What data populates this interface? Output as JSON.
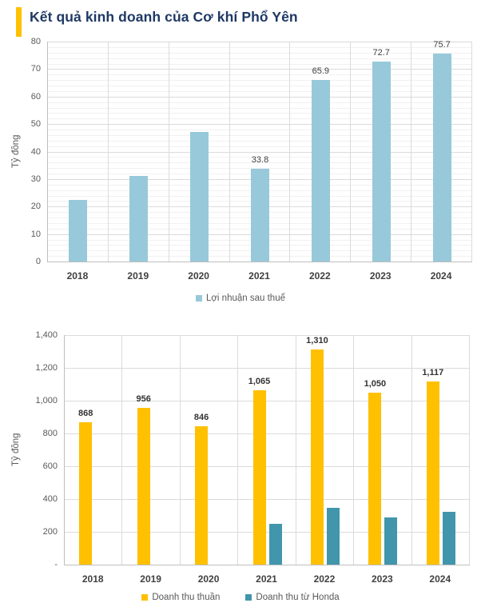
{
  "page": {
    "title": "Kết quả kinh doanh của Cơ khí Phổ Yên"
  },
  "colors": {
    "accent_bar": "#FFC000",
    "title_text": "#1F3864",
    "profit_bar": "#97C9DA",
    "net_revenue_bar": "#FFC000",
    "honda_revenue_bar": "#4296AC"
  },
  "chart_data": [
    {
      "type": "bar",
      "ylabel": "Tỷ đồng",
      "categories": [
        "2018",
        "2019",
        "2020",
        "2021",
        "2022",
        "2023",
        "2024"
      ],
      "series": [
        {
          "name": "Lợi nhuận sau thuế",
          "color": "#97C9DA",
          "values": [
            22.5,
            31.2,
            47.0,
            33.8,
            65.9,
            72.7,
            75.7
          ],
          "labels": [
            "",
            "",
            "",
            "33.8",
            "65.9",
            "72.7",
            "75.7"
          ]
        }
      ],
      "ylim": [
        0,
        80
      ],
      "ytick_step": 10,
      "ytick_labels": [
        "0",
        "10",
        "20",
        "30",
        "40",
        "50",
        "60",
        "70",
        "80"
      ],
      "minor_grid_step": 2,
      "grid": true,
      "legend_position": "bottom"
    },
    {
      "type": "bar",
      "ylabel": "Tỷ đồng",
      "categories": [
        "2018",
        "2019",
        "2020",
        "2021",
        "2022",
        "2023",
        "2024"
      ],
      "series": [
        {
          "name": "Doanh thu thuần",
          "color": "#FFC000",
          "values": [
            868,
            956,
            846,
            1065,
            1310,
            1050,
            1117
          ],
          "labels": [
            "868",
            "956",
            "846",
            "1,065",
            "1,310",
            "1,050",
            "1,117"
          ]
        },
        {
          "name": "Doanh thu từ Honda",
          "color": "#4296AC",
          "values": [
            null,
            null,
            null,
            250,
            345,
            288,
            322
          ],
          "labels": [
            "",
            "",
            "",
            "",
            "",
            "",
            ""
          ]
        }
      ],
      "ylim": [
        0,
        1400
      ],
      "ytick_step": 200,
      "ytick_labels": [
        "-",
        "200",
        "400",
        "600",
        "800",
        "1,000",
        "1,200",
        "1,400"
      ],
      "minor_grid_step": null,
      "grid": true,
      "legend_position": "bottom"
    }
  ]
}
